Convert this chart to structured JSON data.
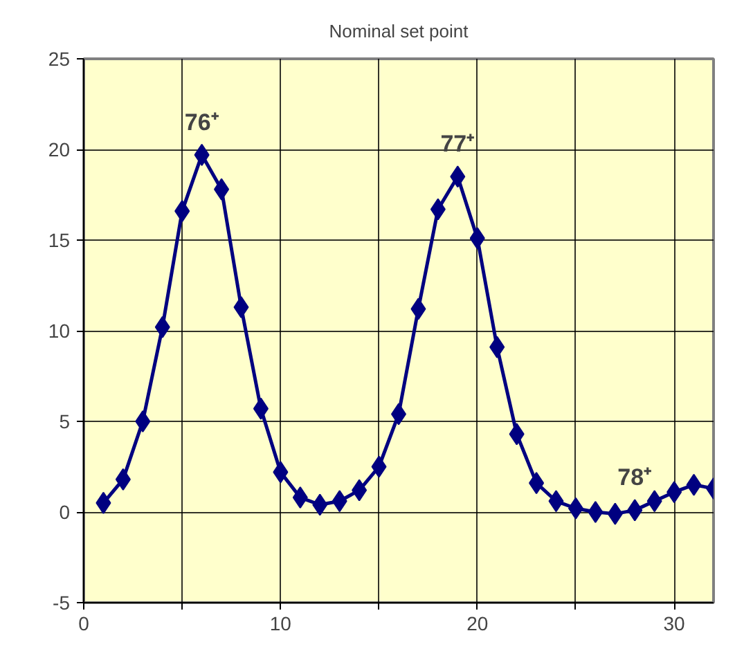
{
  "chart_data": {
    "type": "line",
    "title": "Nominal set point",
    "x": [
      1,
      2,
      3,
      4,
      5,
      6,
      7,
      8,
      9,
      10,
      11,
      12,
      13,
      14,
      15,
      16,
      17,
      18,
      19,
      20,
      21,
      22,
      23,
      24,
      25,
      26,
      27,
      28,
      29,
      30,
      31,
      32
    ],
    "series": [
      {
        "color": "#000080",
        "values": [
          0.5,
          1.8,
          5.0,
          10.2,
          16.6,
          19.7,
          17.8,
          11.3,
          5.7,
          2.2,
          0.8,
          0.4,
          0.6,
          1.2,
          2.5,
          5.4,
          11.2,
          16.7,
          18.5,
          15.1,
          9.1,
          4.3,
          1.6,
          0.6,
          0.2,
          0.0,
          -0.1,
          0.1,
          0.6,
          1.1,
          1.5,
          1.3
        ]
      }
    ],
    "xlim": [
      0,
      32
    ],
    "xticks": [
      0,
      {
        "value": 5,
        "label": null
      },
      10,
      {
        "value": 15,
        "label": null
      },
      20,
      {
        "value": 25,
        "label": null
      },
      30
    ],
    "ylim": [
      -5,
      25
    ],
    "yticks": [
      -5,
      0,
      5,
      10,
      15,
      20,
      25
    ],
    "grid": true,
    "marker": "diamond",
    "line_style": "solid",
    "annotations": [
      {
        "text": "76⁺",
        "x": 6,
        "y": 19.7
      },
      {
        "text": "77⁺",
        "x": 19,
        "y": 18.5
      },
      {
        "text": "78⁺",
        "x": 28,
        "y": 0.1
      }
    ]
  }
}
